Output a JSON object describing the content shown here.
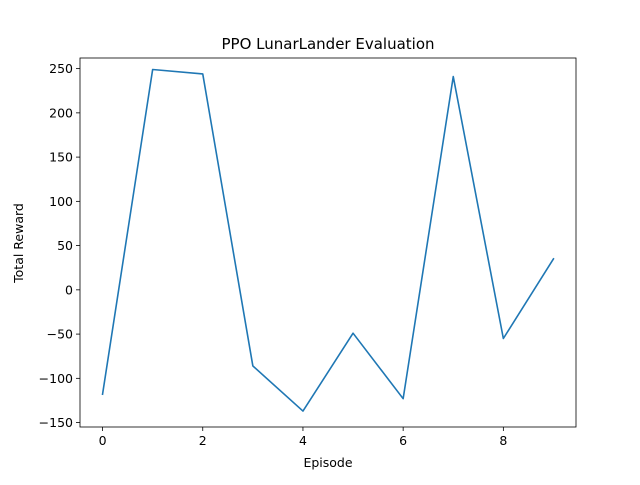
{
  "chart_data": {
    "type": "line",
    "title": "PPO LunarLander Evaluation",
    "xlabel": "Episode",
    "ylabel": "Total Reward",
    "xlim": [
      -0.45,
      9.45
    ],
    "ylim": [
      -155,
      262
    ],
    "xticks": [
      0,
      2,
      4,
      6,
      8
    ],
    "yticks": [
      -150,
      -100,
      -50,
      0,
      50,
      100,
      150,
      200,
      250
    ],
    "grid": false,
    "series": [
      {
        "color": "#1f77b4",
        "x": [
          0,
          1,
          2,
          3,
          4,
          5,
          6,
          7,
          8,
          9
        ],
        "y": [
          -118,
          249,
          244,
          -86,
          -137,
          -49,
          -123,
          241,
          -55,
          35
        ]
      }
    ]
  }
}
